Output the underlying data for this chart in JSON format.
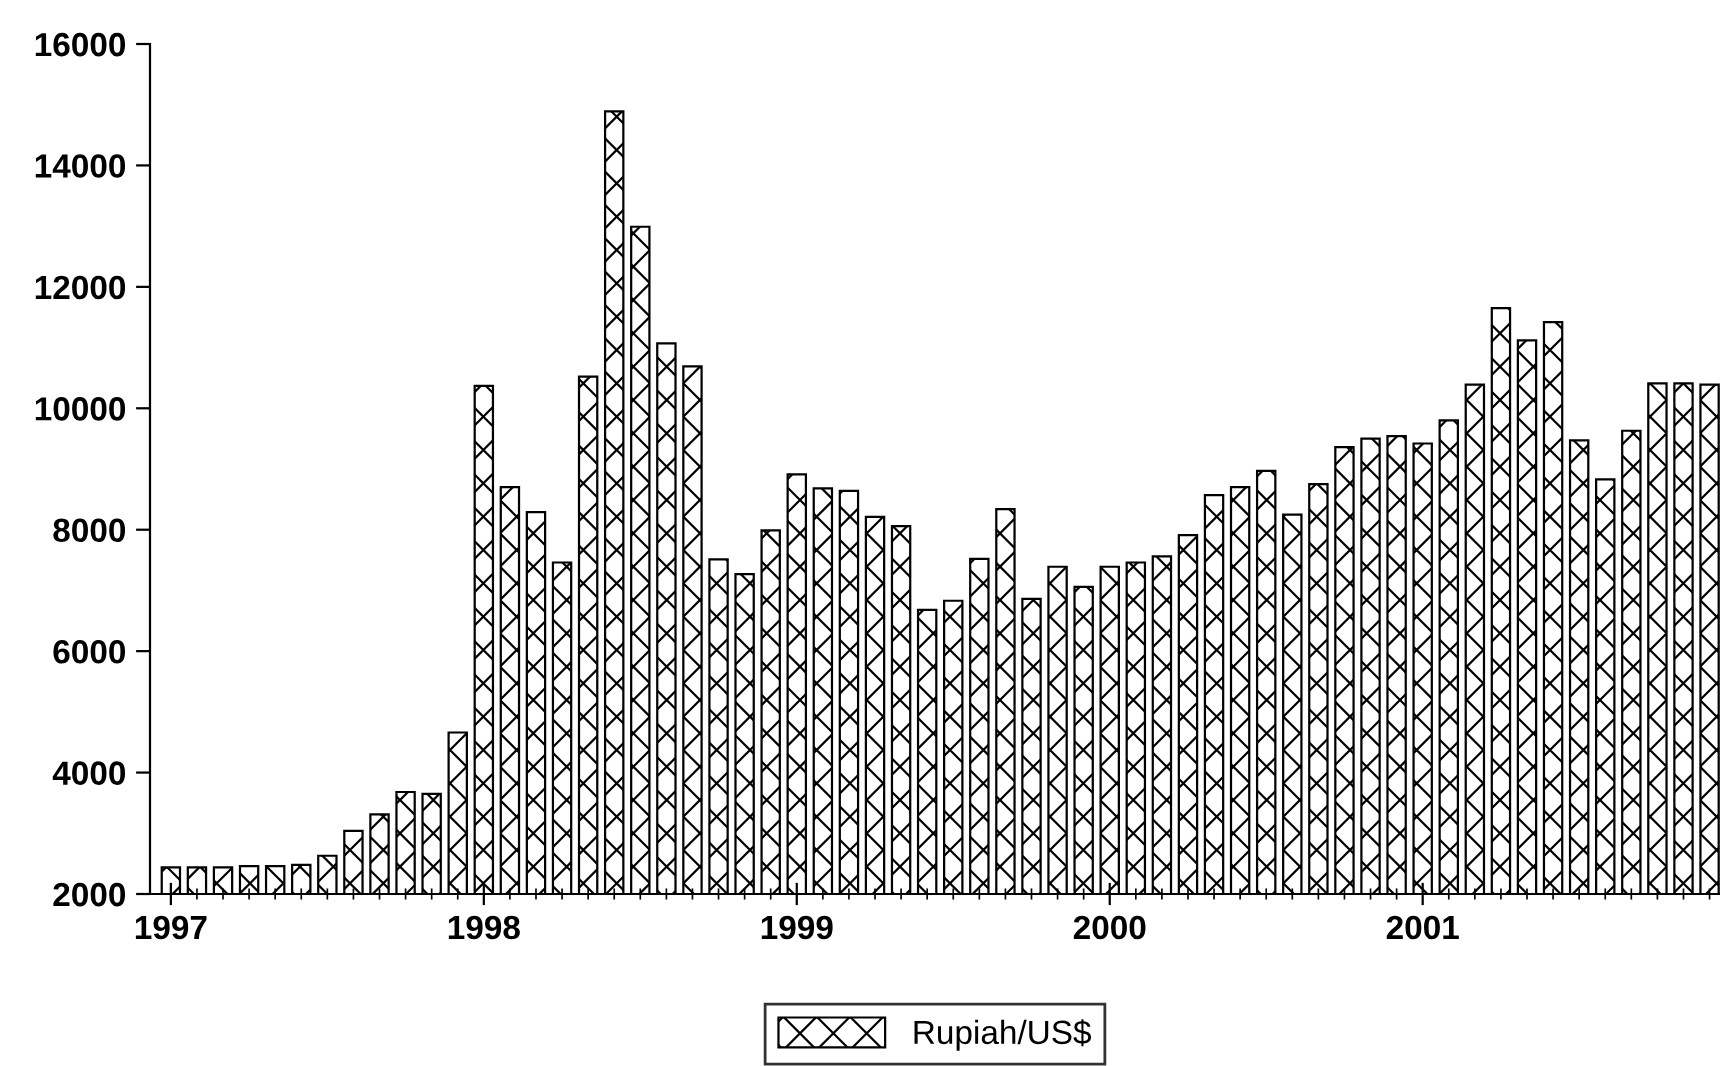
{
  "chart_data": {
    "type": "bar",
    "categories": [
      "1997",
      null,
      null,
      null,
      null,
      null,
      null,
      null,
      null,
      null,
      null,
      null,
      "1998",
      null,
      null,
      null,
      null,
      null,
      null,
      null,
      null,
      null,
      null,
      null,
      "1999",
      null,
      null,
      null,
      null,
      null,
      null,
      null,
      null,
      null,
      null,
      null,
      "2000",
      null,
      null,
      null,
      null,
      null,
      null,
      null,
      null,
      null,
      null,
      null,
      "2001",
      null,
      null,
      null,
      null,
      null,
      null,
      null,
      null,
      null,
      null,
      null
    ],
    "series": [
      {
        "name": "Rupiah/US$",
        "color": "#000000",
        "values": [
          2440,
          2440,
          2440,
          2460,
          2460,
          2480,
          2630,
          3040,
          3310,
          3680,
          3650,
          4660,
          10370,
          8700,
          8290,
          7460,
          10520,
          14890,
          12990,
          11070,
          10690,
          7510,
          7270,
          7990,
          8910,
          8680,
          8640,
          8210,
          8060,
          6680,
          6830,
          7520,
          8340,
          6860,
          7390,
          7060,
          7390,
          7460,
          7560,
          7910,
          8570,
          8700,
          8970,
          8250,
          8750,
          9360,
          9500,
          9540,
          9420,
          9800,
          10390,
          11650,
          11120,
          11420,
          9470,
          8830,
          9630,
          10410,
          10410,
          10390
        ]
      }
    ],
    "ylim": [
      2000,
      16000
    ],
    "yticks": [
      2000,
      4000,
      6000,
      8000,
      10000,
      12000,
      14000,
      16000
    ],
    "legend": "bottom"
  }
}
